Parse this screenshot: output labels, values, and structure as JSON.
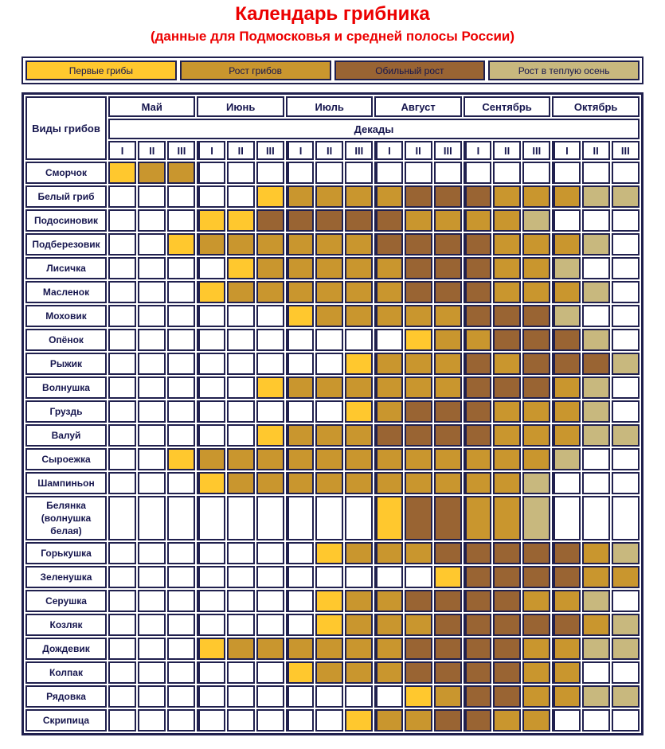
{
  "title": "Календарь грибника",
  "subtitle": "(данные для Подмосковья и средней полосы России)",
  "legend": {
    "items": [
      {
        "label": "Первые грибы",
        "value": 1,
        "color": "#FFC82E"
      },
      {
        "label": "Рост грибов",
        "value": 2,
        "color": "#C9962E"
      },
      {
        "label": "Обильный рост",
        "value": 3,
        "color": "#996433"
      },
      {
        "label": "Рост в теплую осень",
        "value": 4,
        "color": "#C8B87E"
      }
    ]
  },
  "chart_data": {
    "type": "heatmap",
    "title": "Календарь грибника",
    "corner_label": "Виды грибов",
    "decades_header": "Декады",
    "months": [
      "Май",
      "Июнь",
      "Июль",
      "Август",
      "Сентябрь",
      "Октябрь"
    ],
    "decades_per_month": [
      "I",
      "II",
      "III"
    ],
    "value_meaning": {
      "0": "пусто",
      "1": "Первые грибы",
      "2": "Рост грибов",
      "3": "Обильный рост",
      "4": "Рост в теплую осень"
    },
    "rows": [
      {
        "name": "Сморчок",
        "cells": [
          1,
          2,
          2,
          0,
          0,
          0,
          0,
          0,
          0,
          0,
          0,
          0,
          0,
          0,
          0,
          0,
          0,
          0
        ]
      },
      {
        "name": "Белый гриб",
        "cells": [
          0,
          0,
          0,
          0,
          0,
          1,
          2,
          2,
          2,
          2,
          3,
          3,
          3,
          2,
          2,
          2,
          4,
          4
        ]
      },
      {
        "name": "Подосиновик",
        "cells": [
          0,
          0,
          0,
          1,
          1,
          3,
          3,
          3,
          3,
          3,
          2,
          2,
          2,
          2,
          4,
          0,
          0,
          0
        ]
      },
      {
        "name": "Подберезовик",
        "cells": [
          0,
          0,
          1,
          2,
          2,
          2,
          2,
          2,
          2,
          3,
          3,
          3,
          3,
          2,
          2,
          2,
          4,
          0
        ]
      },
      {
        "name": "Лисичка",
        "cells": [
          0,
          0,
          0,
          0,
          1,
          2,
          2,
          2,
          2,
          2,
          3,
          3,
          3,
          2,
          2,
          4,
          0,
          0
        ]
      },
      {
        "name": "Масленок",
        "cells": [
          0,
          0,
          0,
          1,
          2,
          2,
          2,
          2,
          2,
          2,
          3,
          3,
          3,
          2,
          2,
          2,
          4,
          0
        ]
      },
      {
        "name": "Моховик",
        "cells": [
          0,
          0,
          0,
          0,
          0,
          0,
          1,
          2,
          2,
          2,
          2,
          2,
          3,
          3,
          3,
          4,
          0,
          0
        ]
      },
      {
        "name": "Опёнок",
        "cells": [
          0,
          0,
          0,
          0,
          0,
          0,
          0,
          0,
          0,
          0,
          1,
          2,
          2,
          3,
          3,
          3,
          4,
          0
        ]
      },
      {
        "name": "Рыжик",
        "cells": [
          0,
          0,
          0,
          0,
          0,
          0,
          0,
          0,
          1,
          2,
          2,
          2,
          3,
          2,
          3,
          3,
          3,
          4
        ]
      },
      {
        "name": "Волнушка",
        "cells": [
          0,
          0,
          0,
          0,
          0,
          1,
          2,
          2,
          2,
          2,
          2,
          2,
          3,
          3,
          3,
          2,
          4,
          0
        ]
      },
      {
        "name": "Груздь",
        "cells": [
          0,
          0,
          0,
          0,
          0,
          0,
          0,
          0,
          1,
          2,
          3,
          3,
          3,
          2,
          2,
          2,
          4,
          0
        ]
      },
      {
        "name": "Валуй",
        "cells": [
          0,
          0,
          0,
          0,
          0,
          1,
          2,
          2,
          2,
          3,
          3,
          3,
          3,
          2,
          2,
          2,
          4,
          4
        ]
      },
      {
        "name": "Сыроежка",
        "cells": [
          0,
          0,
          1,
          2,
          2,
          2,
          2,
          2,
          2,
          2,
          2,
          2,
          2,
          2,
          2,
          4,
          0,
          0
        ]
      },
      {
        "name": "Шампиньон",
        "cells": [
          0,
          0,
          0,
          1,
          2,
          2,
          2,
          2,
          2,
          2,
          2,
          2,
          2,
          2,
          4,
          0,
          0,
          0
        ]
      },
      {
        "name": "Белянка (волнушка белая)",
        "cells": [
          0,
          0,
          0,
          0,
          0,
          0,
          0,
          0,
          0,
          1,
          3,
          3,
          2,
          2,
          4,
          0,
          0,
          0
        ]
      },
      {
        "name": "Горькушка",
        "cells": [
          0,
          0,
          0,
          0,
          0,
          0,
          0,
          1,
          2,
          2,
          2,
          3,
          3,
          3,
          3,
          3,
          2,
          4
        ]
      },
      {
        "name": "Зеленушка",
        "cells": [
          0,
          0,
          0,
          0,
          0,
          0,
          0,
          0,
          0,
          0,
          0,
          1,
          3,
          3,
          3,
          3,
          2,
          2
        ]
      },
      {
        "name": "Серушка",
        "cells": [
          0,
          0,
          0,
          0,
          0,
          0,
          0,
          1,
          2,
          2,
          3,
          3,
          3,
          3,
          2,
          2,
          4,
          0
        ]
      },
      {
        "name": "Козляк",
        "cells": [
          0,
          0,
          0,
          0,
          0,
          0,
          0,
          1,
          2,
          2,
          2,
          3,
          3,
          3,
          3,
          3,
          2,
          4
        ]
      },
      {
        "name": "Дождевик",
        "cells": [
          0,
          0,
          0,
          1,
          2,
          2,
          2,
          2,
          2,
          2,
          3,
          3,
          3,
          3,
          2,
          2,
          4,
          4
        ]
      },
      {
        "name": "Колпак",
        "cells": [
          0,
          0,
          0,
          0,
          0,
          0,
          1,
          2,
          2,
          2,
          3,
          3,
          3,
          3,
          2,
          2,
          0,
          0
        ]
      },
      {
        "name": "Рядовка",
        "cells": [
          0,
          0,
          0,
          0,
          0,
          0,
          0,
          0,
          0,
          0,
          1,
          2,
          3,
          3,
          2,
          2,
          4,
          4
        ]
      },
      {
        "name": "Скрипица",
        "cells": [
          0,
          0,
          0,
          0,
          0,
          0,
          0,
          0,
          1,
          2,
          2,
          3,
          3,
          2,
          2,
          0,
          0,
          0
        ]
      }
    ]
  },
  "colors": {
    "first_mushrooms": "#FFC82E",
    "growth": "#C9962E",
    "abundant_growth": "#996433",
    "warm_autumn_growth": "#C8B87E",
    "empty_cell": "#FFFFFF",
    "border": "#20204E",
    "text": "#16164E",
    "title_text": "#EC0000"
  }
}
